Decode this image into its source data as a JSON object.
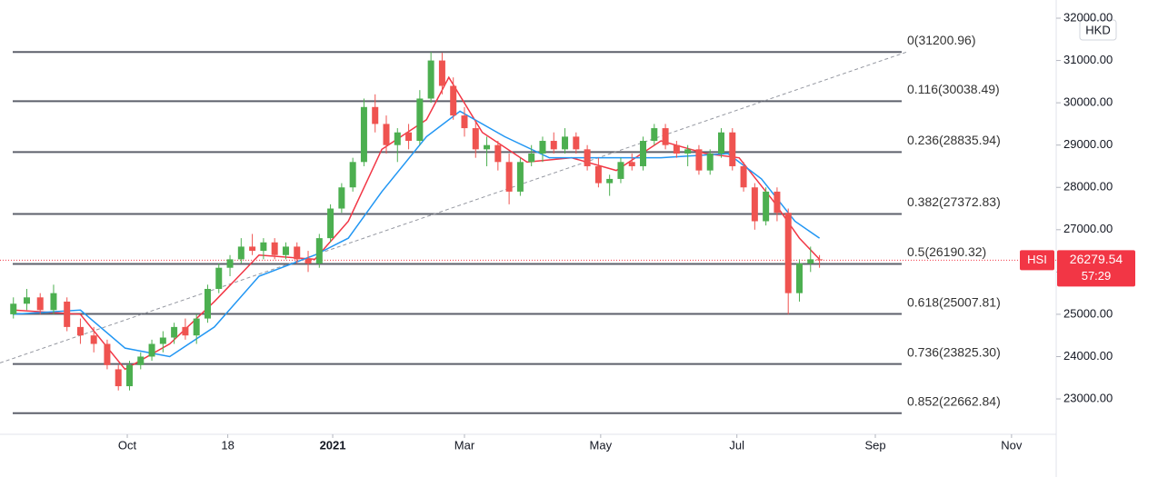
{
  "chart_data": {
    "type": "candlestick",
    "currency": "HKD",
    "xlim": [
      4,
      477
    ],
    "ylim": [
      22163,
      32430
    ],
    "xticks": [
      {
        "value": 61,
        "label": "Oct"
      },
      {
        "value": 106,
        "label": "18"
      },
      {
        "value": 153,
        "label": "2021"
      },
      {
        "value": 212,
        "label": "Mar"
      },
      {
        "value": 273,
        "label": "May"
      },
      {
        "value": 334,
        "label": "Jul"
      },
      {
        "value": 396,
        "label": "Sep"
      },
      {
        "value": 457,
        "label": "Nov"
      }
    ],
    "yticks": [
      {
        "value": 23000,
        "label": "23000.00"
      },
      {
        "value": 24000,
        "label": "24000.00"
      },
      {
        "value": 25000,
        "label": "25000.00"
      },
      {
        "value": 26000,
        "label": "26000.00"
      },
      {
        "value": 27000,
        "label": "27000.00"
      },
      {
        "value": 28000,
        "label": "28000.00"
      },
      {
        "value": 29000,
        "label": "29000.00"
      },
      {
        "value": 30000,
        "label": "30000.00"
      },
      {
        "value": 31000,
        "label": "31000.00"
      },
      {
        "value": 32000,
        "label": "32000.00"
      }
    ],
    "up_color": "#4caf50",
    "down_color": "#ef5350",
    "x": [
      10,
      16,
      22,
      28,
      34,
      40,
      46,
      52,
      57,
      62,
      67,
      72,
      77,
      82,
      87,
      92,
      97,
      102,
      107,
      112,
      117,
      122,
      127,
      132,
      137,
      142,
      147,
      152,
      157,
      162,
      167,
      172,
      177,
      182,
      187,
      192,
      197,
      202,
      207,
      212,
      217,
      222,
      227,
      232,
      237,
      242,
      247,
      252,
      257,
      262,
      267,
      272,
      277,
      282,
      287,
      292,
      297,
      302,
      307,
      312,
      317,
      322,
      327,
      332,
      337,
      342,
      347,
      352,
      357,
      362,
      367,
      371
    ],
    "open": [
      25000,
      25250,
      25400,
      25100,
      25300,
      24700,
      24500,
      24300,
      23700,
      23300,
      23800,
      24000,
      24300,
      24450,
      24700,
      24500,
      24900,
      25600,
      26100,
      26300,
      26600,
      26500,
      26700,
      26400,
      26600,
      26300,
      26200,
      26800,
      27500,
      28000,
      28600,
      29900,
      29500,
      29000,
      29300,
      29100,
      30100,
      31000,
      30400,
      29700,
      29400,
      28900,
      29000,
      28600,
      27900,
      28600,
      28800,
      29100,
      28900,
      29200,
      28900,
      28500,
      28100,
      28200,
      28600,
      28500,
      29100,
      29400,
      29000,
      28800,
      28900,
      28400,
      28800,
      29300,
      28500,
      28000,
      27200,
      27900,
      27400,
      25500,
      26200,
      26300
    ],
    "high": [
      25400,
      25600,
      25500,
      25700,
      25400,
      24900,
      24700,
      24400,
      23800,
      23900,
      24100,
      24400,
      24600,
      24800,
      24900,
      25000,
      25700,
      26200,
      26400,
      26800,
      26900,
      26800,
      26800,
      26700,
      26700,
      26500,
      26900,
      27600,
      28100,
      28700,
      30100,
      30200,
      29700,
      29400,
      29500,
      30300,
      31200,
      31180,
      30600,
      29900,
      29600,
      29200,
      29100,
      28800,
      28700,
      29000,
      29200,
      29300,
      29400,
      29300,
      29000,
      28700,
      28300,
      28700,
      28800,
      29200,
      29500,
      29500,
      29100,
      29000,
      29000,
      28900,
      29400,
      29400,
      28600,
      28100,
      28000,
      28000,
      27500,
      26300,
      26600,
      26400
    ],
    "low": [
      24900,
      25100,
      25000,
      25000,
      24600,
      24300,
      24100,
      23700,
      23200,
      23200,
      23700,
      23900,
      24100,
      24300,
      24400,
      24300,
      24800,
      25500,
      25900,
      26200,
      26400,
      26300,
      26300,
      26300,
      26200,
      26000,
      26100,
      26700,
      27400,
      27900,
      28500,
      29300,
      28800,
      28600,
      28900,
      29000,
      30000,
      30200,
      29600,
      29200,
      28700,
      28500,
      28400,
      27600,
      27800,
      28500,
      28600,
      28800,
      28800,
      28800,
      28400,
      28000,
      27800,
      28100,
      28400,
      28400,
      29000,
      28900,
      28700,
      28500,
      28300,
      28300,
      28700,
      28400,
      27900,
      27000,
      27100,
      27200,
      25000,
      25300,
      26000,
      26100
    ],
    "close": [
      25250,
      25400,
      25100,
      25500,
      24700,
      24500,
      24300,
      23800,
      23300,
      23800,
      24000,
      24300,
      24450,
      24700,
      24500,
      24900,
      25600,
      26100,
      26300,
      26600,
      26500,
      26700,
      26400,
      26600,
      26300,
      26200,
      26800,
      27500,
      28000,
      28600,
      29900,
      29500,
      29000,
      29300,
      29100,
      30100,
      31000,
      30400,
      29700,
      29400,
      28900,
      29000,
      28600,
      27900,
      28600,
      28800,
      29100,
      28900,
      29200,
      28900,
      28500,
      28100,
      28200,
      28600,
      28500,
      29100,
      29400,
      29000,
      28800,
      28900,
      28400,
      28800,
      29300,
      28500,
      28000,
      27200,
      27900,
      27400,
      25500,
      26200,
      26300,
      26279.54
    ],
    "moving_averages": [
      {
        "color": "#f23645",
        "x": [
          10,
          40,
          60,
          80,
          100,
          120,
          145,
          160,
          175,
          195,
          205,
          220,
          240,
          260,
          280,
          300,
          320,
          335,
          350,
          362,
          371
        ],
        "values": [
          25100,
          25000,
          23700,
          24300,
          25300,
          26400,
          26300,
          27200,
          28900,
          29600,
          30600,
          29300,
          28600,
          28700,
          28400,
          29100,
          28800,
          28700,
          27700,
          26800,
          26300
        ]
      },
      {
        "color": "#2196f3",
        "x": [
          10,
          40,
          60,
          80,
          100,
          120,
          145,
          160,
          175,
          195,
          210,
          230,
          250,
          270,
          300,
          330,
          345,
          360,
          371
        ],
        "values": [
          25000,
          25100,
          24200,
          24000,
          24700,
          25900,
          26400,
          26800,
          27900,
          29200,
          29800,
          29200,
          28700,
          28700,
          28700,
          28800,
          28200,
          27200,
          26800
        ]
      }
    ],
    "trend_line": {
      "x": [
        4,
        410
      ],
      "values": [
        23850,
        31200
      ]
    },
    "fib_levels": [
      {
        "value": 31200.96,
        "label": "0(31200.96)"
      },
      {
        "value": 30038.49,
        "label": "0.116(30038.49)"
      },
      {
        "value": 28835.94,
        "label": "0.236(28835.94)"
      },
      {
        "value": 27372.83,
        "label": "0.382(27372.83)"
      },
      {
        "value": 26190.32,
        "label": "0.5(26190.32)"
      },
      {
        "value": 25007.81,
        "label": "0.618(25007.81)"
      },
      {
        "value": 23825.3,
        "label": "0.736(23825.30)"
      },
      {
        "value": 22662.84,
        "label": "0.852(22662.84)"
      }
    ],
    "last": {
      "symbol": "HSI",
      "value": 26279.54,
      "label": "26279.54",
      "countdown": "57:29",
      "color": "#f23645"
    }
  }
}
